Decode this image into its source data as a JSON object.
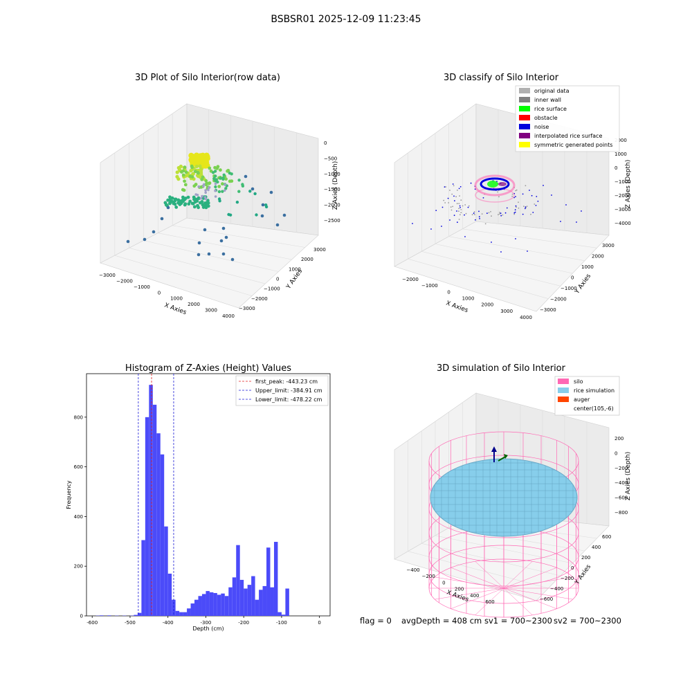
{
  "figure": {
    "suptitle": "BSBSR01 2025-12-09 11:23:45",
    "status_line": {
      "flag": "flag = 0",
      "avg_depth": "avgDepth = 408 cm",
      "sv1": "sv1 = 700~2300",
      "sv2": "sv2 = 700~2300"
    }
  },
  "colors": {
    "hist_bar": "#4b4bf9",
    "first_peak": "#e11d1d",
    "limits": "#1a1ad6",
    "silo": "#ff69b4",
    "rice": "#87ceeb",
    "auger": "#ff4500",
    "noise": "#0000dd",
    "rice_surface": "#00ff00",
    "obstacle": "#ff0000",
    "inner_wall": "#808080",
    "original": "#b0b0b0",
    "interpolated": "#800080",
    "symmetric": "#ffff00"
  },
  "chart_data": [
    {
      "type": "scatter",
      "title": "3D Plot of Silo Interior(row data)",
      "xlabel": "X Axies",
      "ylabel": "Y Axies",
      "zlabel": "Z Axies (Depth)",
      "xticks": [
        "−3000",
        "−2000",
        "−1000",
        "0",
        "1000",
        "2000",
        "3000",
        "4000"
      ],
      "yticks": [
        "−3000",
        "−2000",
        "−1000",
        "0",
        "1000",
        "2000",
        "3000"
      ],
      "zticks": [
        "0",
        "−500",
        "−1000",
        "−1500",
        "−2000",
        "−2500"
      ],
      "xlim": [
        -3000,
        4000
      ],
      "ylim": [
        -3000,
        3500
      ],
      "zlim": [
        -2800,
        200
      ],
      "grid": true
    },
    {
      "type": "scatter",
      "title": "3D classify of Silo Interior",
      "xlabel": "X Axies",
      "ylabel": "Y Axies",
      "zlabel": "Z Axies (Depth)",
      "xticks": [
        "−2000",
        "−1000",
        "0",
        "1000",
        "2000",
        "3000",
        "4000"
      ],
      "yticks": [
        "−3000",
        "−2000",
        "−1000",
        "0",
        "1000",
        "2000",
        "3000"
      ],
      "zticks": [
        "2000",
        "1000",
        "0",
        "−1000",
        "−2000",
        "−3000",
        "−4000"
      ],
      "legend_position": "top-right",
      "legend": [
        {
          "label": "original data",
          "color": "#b0b0b0"
        },
        {
          "label": "inner wall",
          "color": "#808080"
        },
        {
          "label": "rice surface",
          "color": "#00ff00"
        },
        {
          "label": "obstacle",
          "color": "#ff0000"
        },
        {
          "label": "noise",
          "color": "#0000dd"
        },
        {
          "label": "interpolated rice surface",
          "color": "#800080"
        },
        {
          "label": "symmetric generated points",
          "color": "#ffff00"
        }
      ],
      "grid": true
    },
    {
      "type": "bar",
      "title": "Histogram of Z-Axies (Height) Values",
      "xlabel": "Depth (cm)",
      "ylabel": "Frequency",
      "xlim": [
        -615,
        28
      ],
      "ylim": [
        0,
        975
      ],
      "xticks": [
        -600,
        -500,
        -400,
        -300,
        -200,
        -100,
        0
      ],
      "yticks": [
        0,
        200,
        400,
        600,
        800
      ],
      "bin_width": 10,
      "bins": [
        {
          "x": -590,
          "count": 1
        },
        {
          "x": -580,
          "count": 2
        },
        {
          "x": -570,
          "count": 0
        },
        {
          "x": -560,
          "count": 2
        },
        {
          "x": -550,
          "count": 0
        },
        {
          "x": -540,
          "count": 1
        },
        {
          "x": -530,
          "count": 0
        },
        {
          "x": -520,
          "count": 1
        },
        {
          "x": -510,
          "count": 0
        },
        {
          "x": -500,
          "count": 1
        },
        {
          "x": -490,
          "count": 4
        },
        {
          "x": -480,
          "count": 12
        },
        {
          "x": -470,
          "count": 305
        },
        {
          "x": -460,
          "count": 800
        },
        {
          "x": -450,
          "count": 930
        },
        {
          "x": -440,
          "count": 850
        },
        {
          "x": -430,
          "count": 735
        },
        {
          "x": -420,
          "count": 650
        },
        {
          "x": -410,
          "count": 360
        },
        {
          "x": -400,
          "count": 170
        },
        {
          "x": -390,
          "count": 65
        },
        {
          "x": -380,
          "count": 20
        },
        {
          "x": -370,
          "count": 15
        },
        {
          "x": -360,
          "count": 15
        },
        {
          "x": -350,
          "count": 30
        },
        {
          "x": -340,
          "count": 50
        },
        {
          "x": -330,
          "count": 65
        },
        {
          "x": -320,
          "count": 80
        },
        {
          "x": -310,
          "count": 88
        },
        {
          "x": -300,
          "count": 100
        },
        {
          "x": -290,
          "count": 95
        },
        {
          "x": -280,
          "count": 92
        },
        {
          "x": -270,
          "count": 85
        },
        {
          "x": -260,
          "count": 90
        },
        {
          "x": -250,
          "count": 80
        },
        {
          "x": -240,
          "count": 115
        },
        {
          "x": -230,
          "count": 155
        },
        {
          "x": -220,
          "count": 285
        },
        {
          "x": -210,
          "count": 145
        },
        {
          "x": -200,
          "count": 110
        },
        {
          "x": -190,
          "count": 125
        },
        {
          "x": -180,
          "count": 160
        },
        {
          "x": -170,
          "count": 65
        },
        {
          "x": -160,
          "count": 105
        },
        {
          "x": -150,
          "count": 120
        },
        {
          "x": -140,
          "count": 275
        },
        {
          "x": -130,
          "count": 115
        },
        {
          "x": -120,
          "count": 298
        },
        {
          "x": -110,
          "count": 15
        },
        {
          "x": -100,
          "count": 5
        },
        {
          "x": -90,
          "count": 110
        }
      ],
      "lines": [
        {
          "name": "first_peak: -443.23 cm",
          "value": -443.23,
          "color": "#e11d1d"
        },
        {
          "name": "Upper_limit: -384.91 cm",
          "value": -384.91,
          "color": "#1a1ad6"
        },
        {
          "name": "Lower_limit: -478.22 cm",
          "value": -478.22,
          "color": "#1a1ad6"
        }
      ],
      "legend_position": "top-right",
      "grid": false
    },
    {
      "type": "scatter",
      "title": "3D simulation of Silo Interior",
      "xlabel": "X Axies",
      "ylabel": "Y Axies",
      "zlabel": "Z Axies (Depth)",
      "xticks": [
        "−400",
        "−200",
        "0",
        "200",
        "400",
        "600"
      ],
      "yticks": [
        "−600",
        "−400",
        "−200",
        "0",
        "200",
        "400",
        "600"
      ],
      "zticks": [
        "200",
        "0",
        "−200",
        "−400",
        "−600",
        "−800"
      ],
      "legend_position": "top-right",
      "legend": [
        {
          "label": "silo",
          "color": "#ff69b4"
        },
        {
          "label": "rice simulation",
          "color": "#87ceeb"
        },
        {
          "label": "auger",
          "color": "#ff4500"
        },
        {
          "label": "center(105,-6)",
          "color": ""
        }
      ],
      "grid": true
    }
  ]
}
